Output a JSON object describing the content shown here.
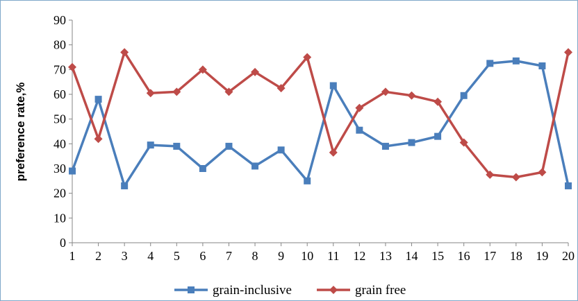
{
  "chart_data": {
    "type": "line",
    "title": "",
    "xlabel": "",
    "ylabel": "preference rate,%",
    "ylim": [
      0,
      90
    ],
    "yticks": [
      "0",
      "10",
      "20",
      "30",
      "40",
      "50",
      "60",
      "70",
      "80",
      "90"
    ],
    "x": [
      "1",
      "2",
      "3",
      "4",
      "5",
      "6",
      "7",
      "8",
      "9",
      "10",
      "11",
      "12",
      "13",
      "14",
      "15",
      "16",
      "17",
      "18",
      "19",
      "20"
    ],
    "grid": false,
    "legend": "bottom",
    "series": [
      {
        "name": "grain-inclusive",
        "color": "#4a7ebb",
        "marker": "square",
        "values": [
          29,
          58,
          23,
          39.5,
          39,
          30,
          39,
          31,
          37.5,
          25,
          63.5,
          45.5,
          39,
          40.5,
          43,
          59.5,
          72.5,
          73.5,
          71.5,
          23
        ]
      },
      {
        "name": "grain free",
        "color": "#be4b48",
        "marker": "diamond",
        "values": [
          71,
          42,
          77,
          60.5,
          61,
          70,
          61,
          69,
          62.5,
          75,
          36.5,
          54.5,
          61,
          59.5,
          57,
          40.5,
          27.5,
          26.5,
          28.5,
          77
        ]
      }
    ]
  }
}
